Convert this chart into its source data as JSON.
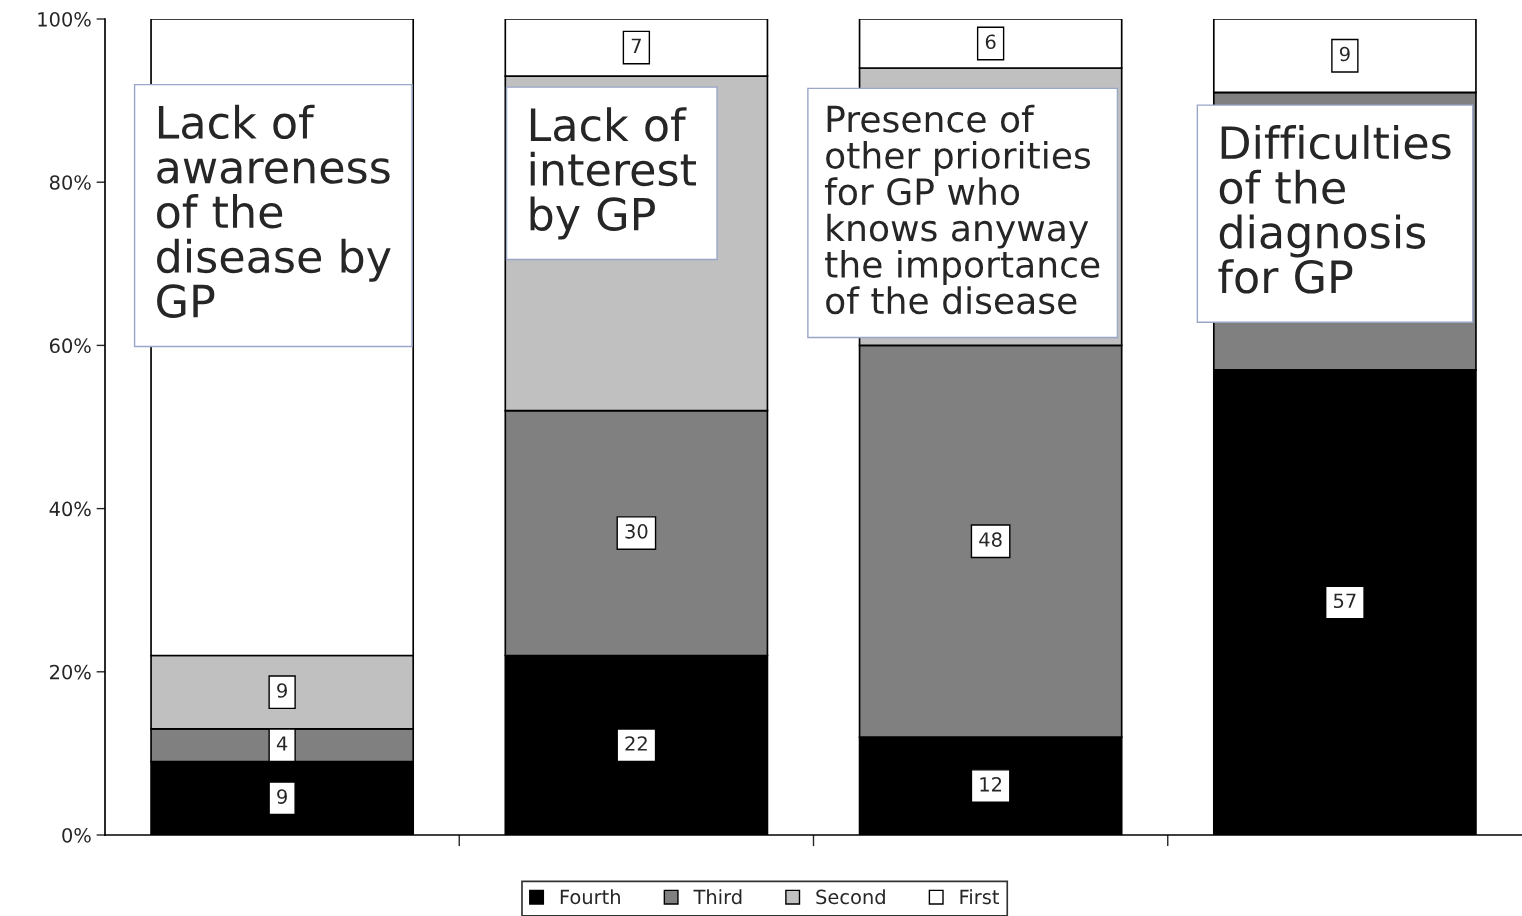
{
  "chart_data": {
    "type": "bar",
    "stacked": true,
    "categories": [
      "Lack of\nawareness\nof the\ndisease by\nGP",
      "Lack of\ninterest\nby GP",
      "Presence of\nother priorities\nfor GP who\nknows anyway\nthe importance\nof the disease",
      "Difficulties\nof the\ndiagnosis\nfor GP"
    ],
    "series": [
      {
        "name": "Fourth",
        "color": "#000000",
        "values": [
          9,
          22,
          12,
          57
        ],
        "value_labels": [
          "9",
          "22",
          "12",
          "57"
        ]
      },
      {
        "name": "Third",
        "color": "#808080",
        "values": [
          4,
          30,
          48,
          34
        ],
        "value_labels": [
          "4",
          "30",
          "48",
          null
        ]
      },
      {
        "name": "Second",
        "color": "#c0c0c0",
        "values": [
          9,
          41,
          34,
          null
        ],
        "value_labels": [
          "9",
          null,
          null,
          null
        ]
      },
      {
        "name": "First",
        "color": "#ffffff",
        "values": [
          78,
          7,
          6,
          9
        ],
        "value_labels": [
          null,
          "7",
          "6",
          "9"
        ]
      }
    ],
    "ylim": [
      0,
      100
    ],
    "yticks": [
      {
        "value": 0,
        "label": "0%"
      },
      {
        "value": 20,
        "label": "20%"
      },
      {
        "value": 40,
        "label": "40%"
      },
      {
        "value": 60,
        "label": "60%"
      },
      {
        "value": 80,
        "label": "80%"
      },
      {
        "value": 100,
        "label": "100%"
      }
    ],
    "legend": "bottom",
    "grid": false
  }
}
